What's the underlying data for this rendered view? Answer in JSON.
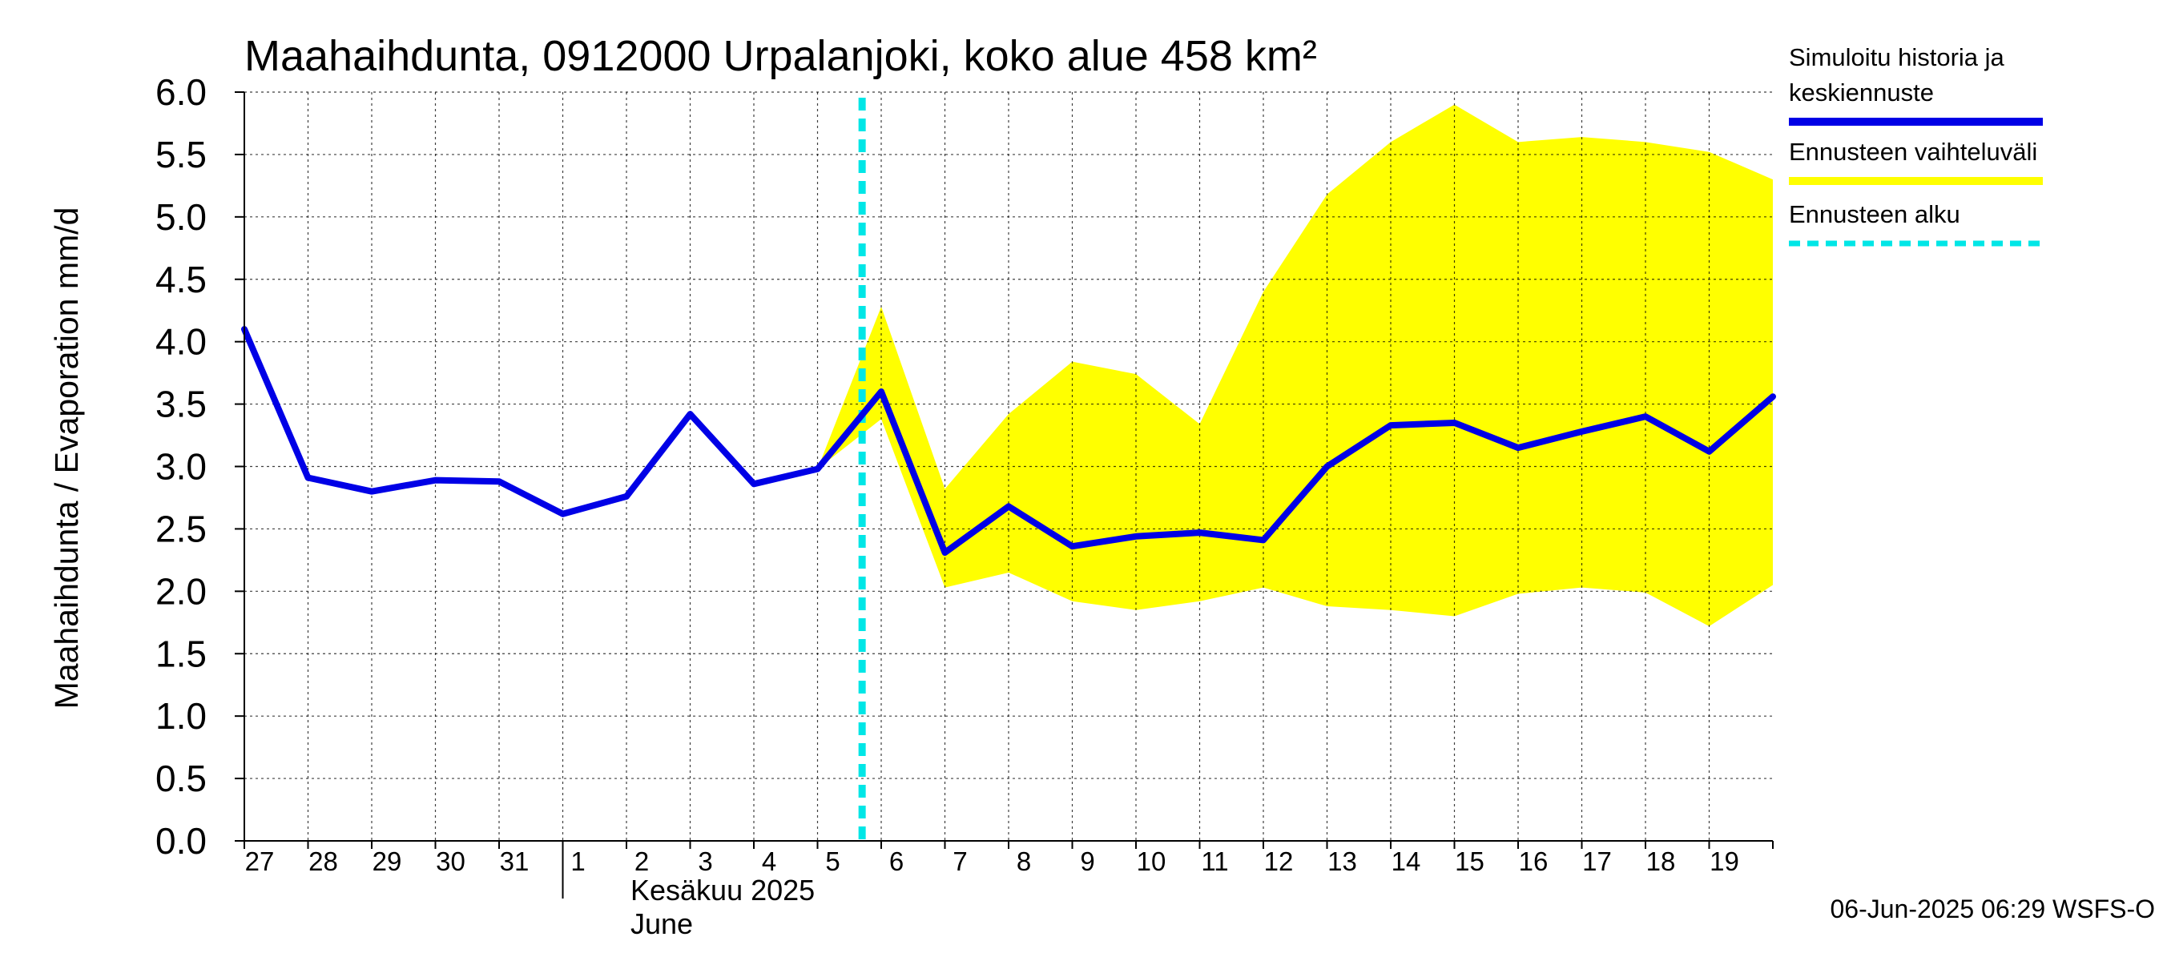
{
  "chart_data": {
    "type": "line",
    "title": "Maahaihdunta, 0912000 Urpalanjoki, koko alue 458 km²",
    "ylabel": "Maahaihdunta / Evaporation   mm/d",
    "ylim": [
      0,
      6.0
    ],
    "yticks": [
      "0.0",
      "0.5",
      "1.0",
      "1.5",
      "2.0",
      "2.5",
      "3.0",
      "3.5",
      "4.0",
      "4.5",
      "5.0",
      "5.5",
      "6.0"
    ],
    "xticks": [
      {
        "day": 0,
        "label": "27"
      },
      {
        "day": 1,
        "label": "28"
      },
      {
        "day": 2,
        "label": "29"
      },
      {
        "day": 3,
        "label": "30"
      },
      {
        "day": 4,
        "label": "31"
      },
      {
        "day": 5,
        "label": "1"
      },
      {
        "day": 6,
        "label": "2"
      },
      {
        "day": 7,
        "label": "3"
      },
      {
        "day": 8,
        "label": "4"
      },
      {
        "day": 9,
        "label": "5"
      },
      {
        "day": 10,
        "label": "6"
      },
      {
        "day": 11,
        "label": "7"
      },
      {
        "day": 12,
        "label": "8"
      },
      {
        "day": 13,
        "label": "9"
      },
      {
        "day": 14,
        "label": "10"
      },
      {
        "day": 15,
        "label": "11"
      },
      {
        "day": 16,
        "label": "12"
      },
      {
        "day": 17,
        "label": "13"
      },
      {
        "day": 18,
        "label": "14"
      },
      {
        "day": 19,
        "label": "15"
      },
      {
        "day": 20,
        "label": "16"
      },
      {
        "day": 21,
        "label": "17"
      },
      {
        "day": 22,
        "label": "18"
      },
      {
        "day": 23,
        "label": "19"
      }
    ],
    "month_label_fi": "Kesäkuu  2025",
    "month_label_en": "June",
    "month_start_day": 5,
    "x_range": [
      0,
      24
    ],
    "forecast_start_day": 10,
    "series": [
      {
        "name": "Simuloitu historia ja keskiennuste",
        "color": "#0000e6",
        "x": [
          0,
          1,
          2,
          3,
          4,
          5,
          6,
          7,
          8,
          9,
          10,
          11,
          12,
          13,
          14,
          15,
          16,
          17,
          18,
          19,
          20,
          21,
          22,
          23,
          24
        ],
        "values": [
          4.1,
          2.91,
          2.8,
          2.89,
          2.88,
          2.62,
          2.76,
          3.42,
          2.86,
          2.98,
          3.6,
          2.31,
          2.68,
          2.36,
          2.44,
          2.47,
          2.41,
          3.0,
          3.33,
          3.35,
          3.15,
          3.28,
          3.4,
          3.12,
          3.56
        ]
      }
    ],
    "band": {
      "name": "Ennusteen vaihteluväli",
      "color": "#ffff00",
      "x": [
        9,
        10,
        11,
        12,
        13,
        14,
        15,
        16,
        17,
        18,
        19,
        20,
        21,
        22,
        23,
        24
      ],
      "upper": [
        2.98,
        4.28,
        2.82,
        3.42,
        3.84,
        3.74,
        3.34,
        4.4,
        5.18,
        5.6,
        5.9,
        5.6,
        5.64,
        5.6,
        5.52,
        5.3
      ],
      "lower": [
        2.98,
        3.38,
        2.03,
        2.15,
        1.92,
        1.85,
        1.92,
        2.03,
        1.88,
        1.85,
        1.8,
        1.98,
        2.03,
        1.99,
        1.72,
        2.05
      ]
    },
    "forecast_line": {
      "name": "Ennusteen alku",
      "color": "#00e6e6"
    },
    "legend": {
      "placement": "right",
      "entries": [
        {
          "lines": [
            "Simuloitu historia ja",
            "keskiennuste"
          ],
          "color": "#0000e6",
          "style": "solid"
        },
        {
          "lines": [
            "Ennusteen vaihteluväli"
          ],
          "color": "#ffff00",
          "style": "solid"
        },
        {
          "lines": [
            "Ennusteen alku"
          ],
          "color": "#00e6e6",
          "style": "dashed"
        }
      ]
    },
    "grid": true,
    "footer": "06-Jun-2025 06:29 WSFS-O"
  }
}
